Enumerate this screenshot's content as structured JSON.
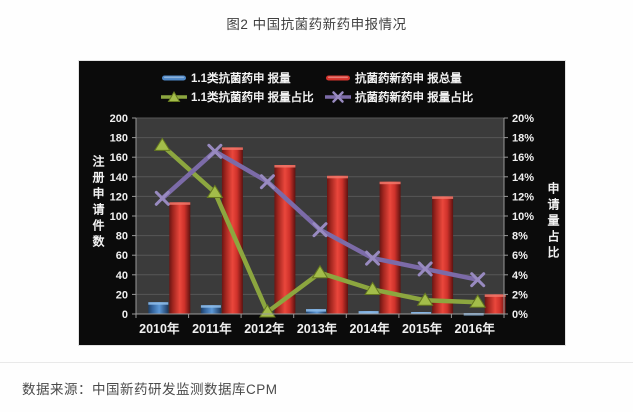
{
  "page": {
    "title": "图2 中国抗菌药新药申报情况",
    "source": "数据来源：中国新药研发监测数据库CPM"
  },
  "chart_data": {
    "type": "combo-bar-line",
    "title": "图2 中国抗菌药新药申报情况",
    "categories": [
      "2010年",
      "2011年",
      "2012年",
      "2013年",
      "2014年",
      "2015年",
      "2016年"
    ],
    "series": [
      {
        "name": "1.1类抗菌药申 报量",
        "type": "bar",
        "axis": "left",
        "color": "#4e87c6",
        "values": [
          12,
          9,
          0,
          5,
          3,
          2,
          1
        ]
      },
      {
        "name": "抗菌药新药申 报总量",
        "type": "bar",
        "axis": "left",
        "color": "#d6342c",
        "values": [
          114,
          170,
          152,
          141,
          135,
          120,
          20
        ]
      },
      {
        "name": "1.1类抗菌药申 报量占比",
        "type": "line",
        "marker": "triangle",
        "axis": "right",
        "color": "#8ca63f",
        "values": [
          17.2,
          12.4,
          0.2,
          4.2,
          2.5,
          1.4,
          1.2
        ]
      },
      {
        "name": "抗菌药新药申 报量占比",
        "type": "line",
        "marker": "x",
        "axis": "right",
        "color": "#7c6ba8",
        "values": [
          11.8,
          16.6,
          13.5,
          8.6,
          5.7,
          4.6,
          3.5
        ]
      }
    ],
    "left_axis": {
      "title": "注册申请件数",
      "min": 0,
      "max": 200,
      "step": 20,
      "ticks": [
        "0",
        "20",
        "40",
        "60",
        "80",
        "100",
        "120",
        "140",
        "160",
        "180",
        "200"
      ]
    },
    "right_axis": {
      "title": "申请量占比",
      "min": 0,
      "max": 20,
      "step": 2,
      "ticks": [
        "0%",
        "2%",
        "4%",
        "6%",
        "8%",
        "10%",
        "12%",
        "14%",
        "16%",
        "18%",
        "20%"
      ]
    },
    "legend_position": "top",
    "grid": true,
    "colors": {
      "panel_bg": "#0b0b0b",
      "plot_bg": "#3b3b3b",
      "grid_line": "#575757",
      "axis_line": "#9a9a9a",
      "tick_text": "#f0f0f0",
      "marker_triangle_fill": "#a3bd4a",
      "marker_triangle_edge": "#66791f",
      "marker_x_stroke": "#988ac0"
    }
  }
}
